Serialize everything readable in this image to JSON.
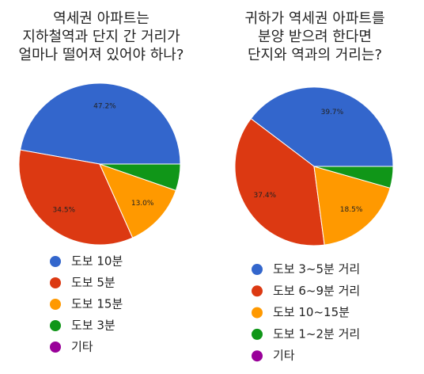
{
  "chart_data": [
    {
      "type": "pie",
      "title": [
        "역세권 아파트는",
        "지하철역과 단지 간 거리가",
        "얼마나 떨어져 있어야 하나?"
      ],
      "categories": [
        "도보 10분",
        "도보 5분",
        "도보 15분",
        "도보 3분",
        "기타"
      ],
      "values": [
        47.2,
        34.5,
        13.0,
        5.3,
        0
      ],
      "value_labels": [
        "47.2%",
        "34.5%",
        "13.0%",
        null,
        null
      ],
      "colors": [
        "#3366cc",
        "#dc3912",
        "#ff9900",
        "#109618",
        "#990099"
      ]
    },
    {
      "type": "pie",
      "title": [
        "귀하가 역세권 아파트를",
        "분양 받으려 한다면",
        "단지와 역과의 거리는?"
      ],
      "categories": [
        "도보 3~5분 거리",
        "도보 6~9분 거리",
        "도보 10~15분",
        "도보 1~2분 거리",
        "기타"
      ],
      "values": [
        39.7,
        37.4,
        18.5,
        4.4,
        0
      ],
      "value_labels": [
        "39.7%",
        "37.4%",
        "18.5%",
        null,
        null
      ],
      "colors": [
        "#3366cc",
        "#dc3912",
        "#ff9900",
        "#109618",
        "#990099"
      ]
    }
  ]
}
